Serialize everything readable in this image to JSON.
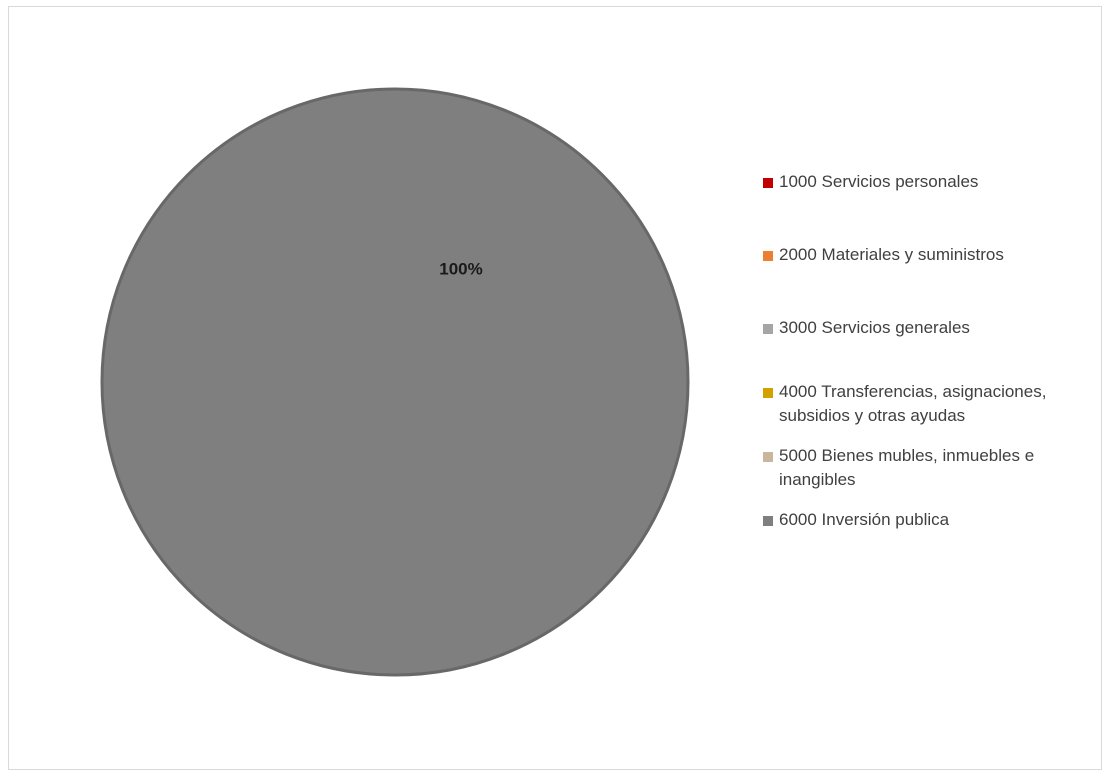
{
  "chart_data": {
    "type": "pie",
    "title": "",
    "legend_position": "right",
    "slices": [
      {
        "label": "1000 Servicios personales",
        "value": 0,
        "color": "#c00000"
      },
      {
        "label": "2000 Materiales y suministros",
        "value": 0,
        "color": "#ed7d31"
      },
      {
        "label": "3000 Servicios generales",
        "value": 0,
        "color": "#a5a5a5"
      },
      {
        "label": "4000 Transferencias, asignaciones, subsidios y otras ayudas",
        "value": 0,
        "color": "#d4a000"
      },
      {
        "label": "5000 Bienes mubles, inmuebles e inangibles",
        "value": 0,
        "color": "#c9b79c"
      },
      {
        "label": "6000 Inversión publica",
        "value": 100,
        "color": "#7f7f7f"
      }
    ],
    "data_labels": [
      {
        "slice": 5,
        "text": "100%"
      }
    ]
  }
}
